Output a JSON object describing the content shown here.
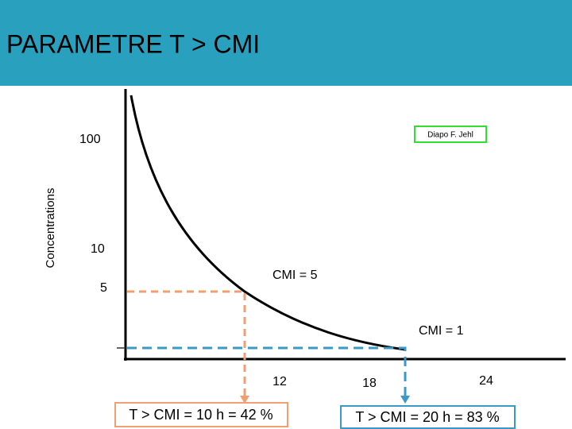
{
  "header": {
    "title": "PARAMETRE T > CMI"
  },
  "credit": "Diapo F. Jehl",
  "axis": {
    "label": "Concentrations",
    "levels": [
      "100",
      "10",
      "5"
    ],
    "times": [
      "12",
      "18",
      "24"
    ]
  },
  "thresholds": [
    "CMI = 5",
    "CMI = 1"
  ],
  "results": [
    "T > CMI = 10 h = 42 %",
    "T > CMI = 20 h = 83 %"
  ]
}
